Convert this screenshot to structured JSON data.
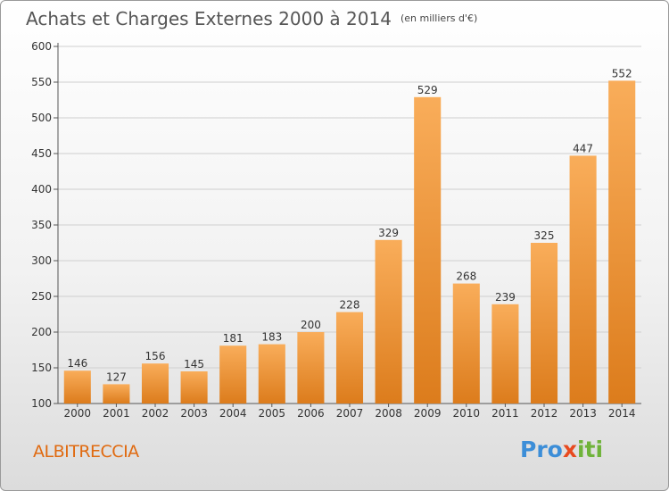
{
  "title": "Achats et Charges Externes 2000 à 2014",
  "subtitle": "(en milliers d'€)",
  "town": "ALBITRECCIA",
  "logo": {
    "p1": "Pro",
    "p2": "x",
    "p3": "iti"
  },
  "colors": {
    "bar_top": "#f9ad5a",
    "bar_bottom": "#dc7c1c",
    "grid": "#cfcfcf"
  },
  "chart_data": {
    "type": "bar",
    "categories": [
      "2000",
      "2001",
      "2002",
      "2003",
      "2004",
      "2005",
      "2006",
      "2007",
      "2008",
      "2009",
      "2010",
      "2011",
      "2012",
      "2013",
      "2014"
    ],
    "values": [
      146,
      127,
      156,
      145,
      181,
      183,
      200,
      228,
      329,
      529,
      268,
      239,
      325,
      447,
      552
    ],
    "ylim": [
      100,
      600
    ],
    "yticks": [
      100,
      150,
      200,
      250,
      300,
      350,
      400,
      450,
      500,
      550,
      600
    ],
    "grid": true
  }
}
